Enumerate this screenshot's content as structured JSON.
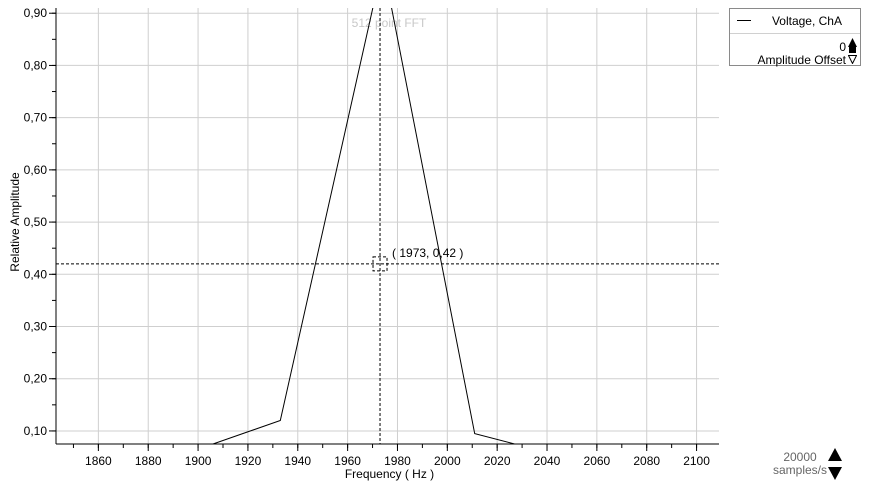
{
  "chart_data": {
    "type": "line",
    "overlay_title": "512 point FFT",
    "xlabel": "Frequency ( Hz )",
    "ylabel": "Relative Amplitude",
    "xlim": [
      1843,
      2109
    ],
    "ylim": [
      0.075,
      0.91
    ],
    "xticks": [
      "1860",
      "1880",
      "1900",
      "1920",
      "1940",
      "1960",
      "1980",
      "2000",
      "2020",
      "2040",
      "2060",
      "2080",
      "2100"
    ],
    "yticks": [
      "0,10",
      "0,20",
      "0,30",
      "0,40",
      "0,50",
      "0,60",
      "0,70",
      "0,80",
      "0,90"
    ],
    "grid": true,
    "series": [
      {
        "name": "Voltage, ChA",
        "color": "#000000",
        "x": [
          1906,
          1933,
          1972,
          1972,
          1976,
          1976,
          2011,
          2027
        ],
        "y": [
          0.075,
          0.12,
          0.95,
          0.95,
          0.95,
          0.95,
          0.095,
          0.075
        ]
      }
    ],
    "cursor": {
      "x": 1973,
      "y": 0.42,
      "readout": "( 1973, 0,42 )"
    }
  },
  "legend": {
    "series_label": "Voltage, ChA",
    "offset_value": "0",
    "offset_label": "Amplitude Offset"
  },
  "sample_rate": {
    "value": "20000",
    "unit": "samples/s"
  }
}
